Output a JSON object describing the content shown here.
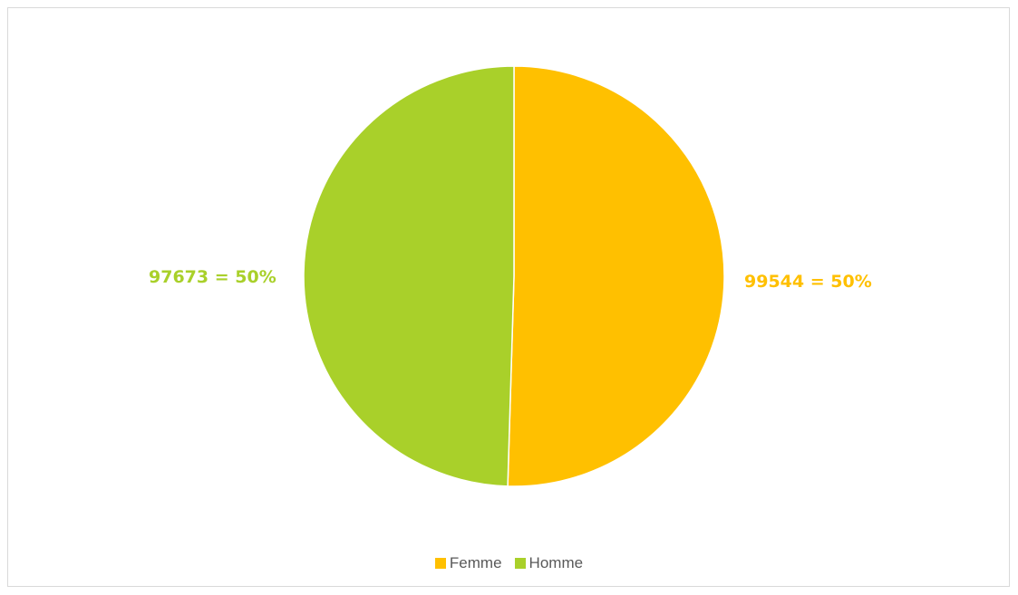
{
  "chart_data": {
    "type": "pie",
    "slices": [
      {
        "label": "Femme",
        "value": 99544,
        "percent": "50%",
        "data_label": "99544 = 50%",
        "color": "#FFC000"
      },
      {
        "label": "Homme",
        "value": 97673,
        "percent": "50%",
        "data_label": "97673 = 50%",
        "color": "#A9D02A"
      }
    ],
    "legend": {
      "placement": "bottom"
    },
    "title": ""
  }
}
